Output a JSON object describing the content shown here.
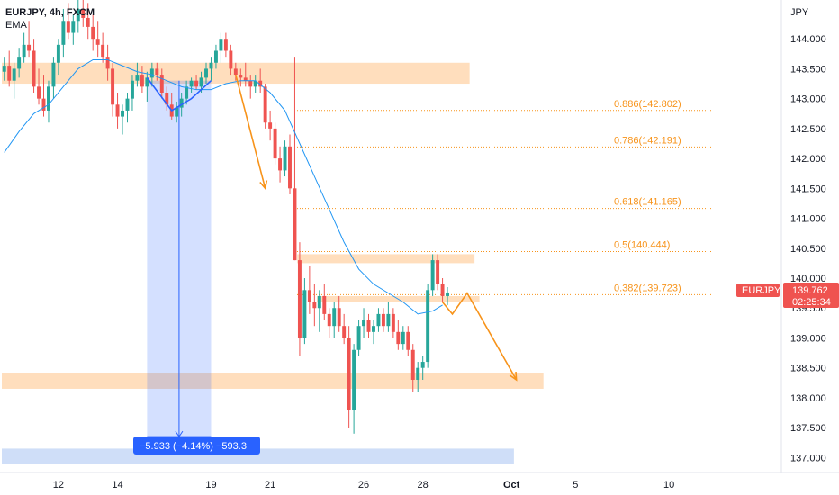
{
  "header": {
    "symbol_line": "EURJPY, 4h, FXCM",
    "indicator": "EMA"
  },
  "axis": {
    "currency": "JPY"
  },
  "colors": {
    "up": "#26a69a",
    "down": "#ef5350",
    "ema": "#2196f3",
    "zone": "#ffcc99",
    "fib": "#f7931a",
    "measure": "#2962ff",
    "price_label": "#ef5350",
    "grid": "#e0e3eb"
  },
  "price_label": {
    "symbol": "EURJPY",
    "price": "139.762",
    "countdown": "02:25:34"
  },
  "measure_label": "−5.933 (−4.14%) −593.3",
  "chart_data": {
    "type": "candlestick",
    "title": "EURJPY, 4h, FXCM",
    "ylim": [
      136.75,
      144.65
    ],
    "y_ticks": [
      137.0,
      137.5,
      138.0,
      138.5,
      139.0,
      139.5,
      140.0,
      140.5,
      141.0,
      141.5,
      142.0,
      142.5,
      143.0,
      143.5,
      144.0
    ],
    "y_tick_labels": [
      "137.000",
      "137.500",
      "138.000",
      "138.500",
      "139.000",
      "139.500",
      "140.000",
      "140.500",
      "141.000",
      "141.500",
      "142.000",
      "142.500",
      "143.000",
      "143.500",
      "144.000"
    ],
    "x_tick_labels": [
      "12",
      "14",
      "19",
      "21",
      "26",
      "28",
      "Oct",
      "5",
      "10"
    ],
    "x_tick_index": [
      11,
      23,
      42,
      54,
      73,
      85,
      103,
      116,
      135
    ],
    "bar_count": 158,
    "candles": [
      [
        143.45,
        143.7,
        143.3,
        143.55
      ],
      [
        143.55,
        143.8,
        143.2,
        143.3
      ],
      [
        143.3,
        143.6,
        143.0,
        143.5
      ],
      [
        143.5,
        143.85,
        143.35,
        143.7
      ],
      [
        143.7,
        144.1,
        143.6,
        143.9
      ],
      [
        143.9,
        144.3,
        143.7,
        143.8
      ],
      [
        143.8,
        144.0,
        143.1,
        143.2
      ],
      [
        143.2,
        143.5,
        142.9,
        143.0
      ],
      [
        143.0,
        143.4,
        142.7,
        142.8
      ],
      [
        142.8,
        143.3,
        142.6,
        143.2
      ],
      [
        143.2,
        143.7,
        143.0,
        143.6
      ],
      [
        143.6,
        144.0,
        143.4,
        143.9
      ],
      [
        143.9,
        144.5,
        143.7,
        144.3
      ],
      [
        144.3,
        144.6,
        144.0,
        144.1
      ],
      [
        144.1,
        144.4,
        143.9,
        144.3
      ],
      [
        144.3,
        144.7,
        144.1,
        144.5
      ],
      [
        144.5,
        144.8,
        144.2,
        144.35
      ],
      [
        144.35,
        144.6,
        144.0,
        144.2
      ],
      [
        144.2,
        144.4,
        143.8,
        144.0
      ],
      [
        144.0,
        144.3,
        143.7,
        143.9
      ],
      [
        143.9,
        144.1,
        143.6,
        143.7
      ],
      [
        143.7,
        143.9,
        143.3,
        143.5
      ],
      [
        143.5,
        143.6,
        142.7,
        142.9
      ],
      [
        142.9,
        143.1,
        142.5,
        142.7
      ],
      [
        142.7,
        142.9,
        142.4,
        142.8
      ],
      [
        142.8,
        143.1,
        142.6,
        143.0
      ],
      [
        143.0,
        143.4,
        142.8,
        143.3
      ],
      [
        143.3,
        143.6,
        143.2,
        143.4
      ],
      [
        143.4,
        143.55,
        143.1,
        143.2
      ],
      [
        143.2,
        143.45,
        142.95,
        143.35
      ],
      [
        143.35,
        143.6,
        143.2,
        143.5
      ],
      [
        143.5,
        143.6,
        143.3,
        143.4
      ],
      [
        143.4,
        143.5,
        143.0,
        143.1
      ],
      [
        143.1,
        143.2,
        142.8,
        142.9
      ],
      [
        142.9,
        143.1,
        142.65,
        142.7
      ],
      [
        142.7,
        142.95,
        142.6,
        142.85
      ],
      [
        142.85,
        143.1,
        142.7,
        143.0
      ],
      [
        143.0,
        143.3,
        142.9,
        143.2
      ],
      [
        143.2,
        143.35,
        143.1,
        143.3
      ],
      [
        143.3,
        143.4,
        143.15,
        143.2
      ],
      [
        143.2,
        143.45,
        143.1,
        143.35
      ],
      [
        143.35,
        143.6,
        143.25,
        143.5
      ],
      [
        143.5,
        143.7,
        143.3,
        143.6
      ],
      [
        143.6,
        143.9,
        143.5,
        143.8
      ],
      [
        143.8,
        144.1,
        143.6,
        144.0
      ],
      [
        144.0,
        144.1,
        143.7,
        143.8
      ],
      [
        143.8,
        143.9,
        143.4,
        143.5
      ],
      [
        143.5,
        143.6,
        143.3,
        143.4
      ],
      [
        143.4,
        143.5,
        143.2,
        143.35
      ],
      [
        143.35,
        143.6,
        143.2,
        143.3
      ],
      [
        143.3,
        143.4,
        143.0,
        143.2
      ],
      [
        143.2,
        143.4,
        143.1,
        143.3
      ],
      [
        143.3,
        143.5,
        143.1,
        143.2
      ],
      [
        143.2,
        143.25,
        142.5,
        142.6
      ],
      [
        142.6,
        142.8,
        142.3,
        142.5
      ],
      [
        142.5,
        142.6,
        141.9,
        142.0
      ],
      [
        142.0,
        142.2,
        141.6,
        141.8
      ],
      [
        141.8,
        142.3,
        141.7,
        142.2
      ],
      [
        142.2,
        142.4,
        141.4,
        141.5
      ],
      [
        141.5,
        143.7,
        140.3,
        140.3
      ],
      [
        140.3,
        140.6,
        138.7,
        139.0
      ],
      [
        139.0,
        140.0,
        138.9,
        139.8
      ],
      [
        139.8,
        140.2,
        139.4,
        139.6
      ],
      [
        139.6,
        139.9,
        139.2,
        139.5
      ],
      [
        139.5,
        139.8,
        139.1,
        139.7
      ],
      [
        139.7,
        139.9,
        139.3,
        139.4
      ],
      [
        139.4,
        139.5,
        139.0,
        139.2
      ],
      [
        139.2,
        139.6,
        139.0,
        139.5
      ],
      [
        139.5,
        139.7,
        139.1,
        139.2
      ],
      [
        139.2,
        139.4,
        138.9,
        139.0
      ],
      [
        139.0,
        139.2,
        137.5,
        137.8
      ],
      [
        137.8,
        138.9,
        137.4,
        138.8
      ],
      [
        138.8,
        139.3,
        138.7,
        139.2
      ],
      [
        139.2,
        139.5,
        139.0,
        139.3
      ],
      [
        139.3,
        139.4,
        139.0,
        139.1
      ],
      [
        139.1,
        139.3,
        138.9,
        139.2
      ],
      [
        139.2,
        139.5,
        139.1,
        139.4
      ],
      [
        139.4,
        139.5,
        139.1,
        139.2
      ],
      [
        139.2,
        139.6,
        139.1,
        139.4
      ],
      [
        139.4,
        139.5,
        139.0,
        139.1
      ],
      [
        139.1,
        139.3,
        138.8,
        138.9
      ],
      [
        138.9,
        139.2,
        138.8,
        139.1
      ],
      [
        139.1,
        139.2,
        138.7,
        138.8
      ],
      [
        138.8,
        138.9,
        138.1,
        138.3
      ],
      [
        138.3,
        138.6,
        138.1,
        138.5
      ],
      [
        138.5,
        138.7,
        138.3,
        138.6
      ],
      [
        138.6,
        139.9,
        138.5,
        139.8
      ],
      [
        139.8,
        140.4,
        139.7,
        140.3
      ],
      [
        140.3,
        140.4,
        139.8,
        139.9
      ],
      [
        139.9,
        140.0,
        139.6,
        139.7
      ],
      [
        139.7,
        139.85,
        139.55,
        139.76
      ]
    ],
    "ema": [
      [
        0,
        142.1
      ],
      [
        3,
        142.45
      ],
      [
        6,
        142.75
      ],
      [
        9,
        142.9
      ],
      [
        12,
        143.2
      ],
      [
        15,
        143.5
      ],
      [
        18,
        143.65
      ],
      [
        21,
        143.65
      ],
      [
        24,
        143.55
      ],
      [
        27,
        143.45
      ],
      [
        30,
        143.4
      ],
      [
        33,
        143.3
      ],
      [
        36,
        143.2
      ],
      [
        39,
        143.15
      ],
      [
        42,
        143.15
      ],
      [
        45,
        143.25
      ],
      [
        48,
        143.3
      ],
      [
        51,
        143.3
      ],
      [
        54,
        143.1
      ],
      [
        57,
        142.8
      ],
      [
        60,
        142.25
      ],
      [
        63,
        141.7
      ],
      [
        66,
        141.15
      ],
      [
        69,
        140.6
      ],
      [
        72,
        140.15
      ],
      [
        75,
        139.9
      ],
      [
        78,
        139.75
      ],
      [
        81,
        139.6
      ],
      [
        84,
        139.4
      ],
      [
        87,
        139.45
      ],
      [
        89,
        139.55
      ]
    ],
    "zones": [
      {
        "x0": 0,
        "x1": 95,
        "y0": 143.25,
        "y1": 143.6
      },
      {
        "x0": 60,
        "x1": 96,
        "y0": 140.25,
        "y1": 140.4
      },
      {
        "x0": 64,
        "x1": 97,
        "y0": 139.6,
        "y1": 139.7
      },
      {
        "x0": 0,
        "x1": 110,
        "y0": 138.15,
        "y1": 138.42
      },
      {
        "x0": 0,
        "x1": 104,
        "y0": 136.9,
        "y1": 137.15,
        "style": "blue"
      }
    ],
    "fib_levels": [
      {
        "ratio": "0.886",
        "value": 142.802,
        "label": "0.886(142.802)"
      },
      {
        "ratio": "0.786",
        "value": 142.191,
        "label": "0.786(142.191)"
      },
      {
        "ratio": "0.618",
        "value": 141.165,
        "label": "0.618(141.165)"
      },
      {
        "ratio": "0.5",
        "value": 140.444,
        "label": "0.5(140.444)"
      },
      {
        "ratio": "0.382",
        "value": 139.723,
        "label": "0.382(139.723)"
      }
    ],
    "measure": {
      "x0": 29,
      "x1": 42,
      "y_top": 143.3,
      "y_bottom": 137.35
    },
    "paths": [
      {
        "points": [
          [
            29,
            143.35
          ],
          [
            34,
            142.8
          ],
          [
            38,
            143.0
          ],
          [
            42,
            143.3
          ]
        ],
        "color": "#2962ff"
      },
      {
        "points": [
          [
            47,
            143.4
          ],
          [
            53,
            141.5
          ]
        ],
        "color": "#f7931a",
        "arrow": true
      },
      {
        "points": [
          [
            89,
            139.6
          ],
          [
            91,
            139.4
          ],
          [
            94,
            139.75
          ],
          [
            104,
            138.3
          ]
        ],
        "color": "#f7931a",
        "arrow": true
      }
    ]
  }
}
